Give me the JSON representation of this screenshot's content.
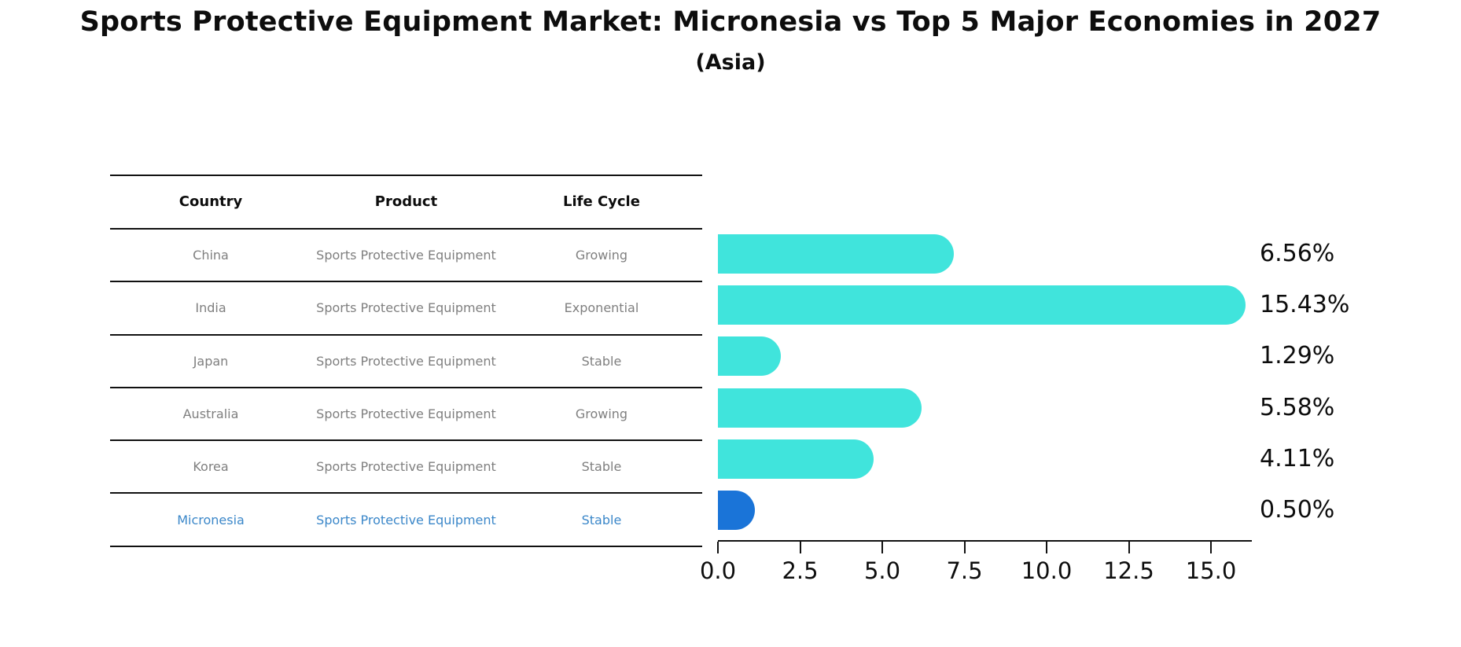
{
  "title": "Sports Protective Equipment Market: Micronesia vs Top 5 Major Economies in 2027",
  "subtitle": "(Asia)",
  "table": {
    "headers": [
      "Country",
      "Product",
      "Life Cycle"
    ],
    "rows": [
      {
        "country": "China",
        "product": "Sports Protective Equipment",
        "life_cycle": "Growing",
        "highlight": false
      },
      {
        "country": "India",
        "product": "Sports Protective Equipment",
        "life_cycle": "Exponential",
        "highlight": false
      },
      {
        "country": "Japan",
        "product": "Sports Protective Equipment",
        "life_cycle": "Stable",
        "highlight": false
      },
      {
        "country": "Australia",
        "product": "Sports Protective Equipment",
        "life_cycle": "Growing",
        "highlight": false
      },
      {
        "country": "Korea",
        "product": "Sports Protective Equipment",
        "life_cycle": "Stable",
        "highlight": false
      },
      {
        "country": "Micronesia",
        "product": "Sports Protective Equipment",
        "life_cycle": "Stable",
        "highlight": true
      }
    ]
  },
  "chart_data": {
    "type": "bar",
    "orientation": "horizontal",
    "title": "Sports Protective Equipment Market: Micronesia vs Top 5 Major Economies in 2027",
    "subtitle": "(Asia)",
    "categories": [
      "China",
      "India",
      "Japan",
      "Australia",
      "Korea",
      "Micronesia"
    ],
    "values": [
      6.56,
      15.43,
      1.29,
      5.58,
      4.11,
      0.5
    ],
    "value_labels": [
      "6.56%",
      "15.43%",
      "1.29%",
      "5.58%",
      "4.11%",
      "0.50%"
    ],
    "x_tick_labels": [
      "0.0",
      "2.5",
      "5.0",
      "7.5",
      "10.0",
      "12.5",
      "15.0"
    ],
    "x_tick_values": [
      0,
      2.5,
      5,
      7.5,
      10,
      12.5,
      15
    ],
    "xlim": [
      0,
      16.2
    ],
    "grid": false,
    "legend": "none",
    "bar_color": "#40E4DC",
    "highlight_color": "#1A74D8",
    "highlight_index": 5,
    "highlight_text_color": "#3B87C9",
    "table_text_color": "#7F7F7F",
    "axis_color": "#111111"
  }
}
